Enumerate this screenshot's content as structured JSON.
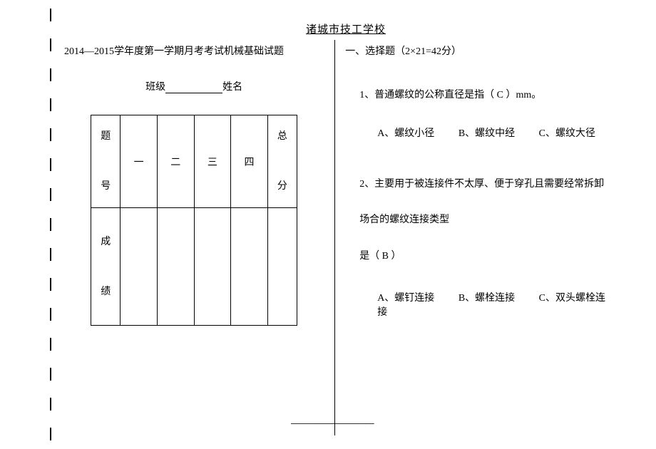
{
  "school_name": "诸城市技工学校",
  "exam_title": "2014—2015学年度第一学期月考考试机械基础试题",
  "class_label": "班级",
  "name_label": "姓名",
  "table": {
    "row_header_1_top": "题",
    "row_header_1_bottom": "号",
    "row_header_2_top": "成",
    "row_header_2_bottom": "绩",
    "col1": "一",
    "col2": "二",
    "col3": "三",
    "col4": "四",
    "col5_top": "总",
    "col5_bottom": "分"
  },
  "section1_title": "一、选择题（2×21=42分）",
  "q1": {
    "text": "1、普通螺纹的公称直径是指（  C  ）mm。",
    "opt_a": "A、螺纹小径",
    "opt_b": "B、螺纹中经",
    "opt_c": "C、螺纹大径"
  },
  "q2": {
    "line1": "2、主要用于被连接件不太厚、便于穿孔且需要经常拆卸",
    "line2": "场合的螺纹连接类型",
    "line3": "是（  B  ）",
    "opt_a": "A、螺钉连接",
    "opt_b": "B、螺栓连接",
    "opt_c": "C、双头螺栓连接"
  },
  "footer_dashes": "--------------------------------------------------"
}
